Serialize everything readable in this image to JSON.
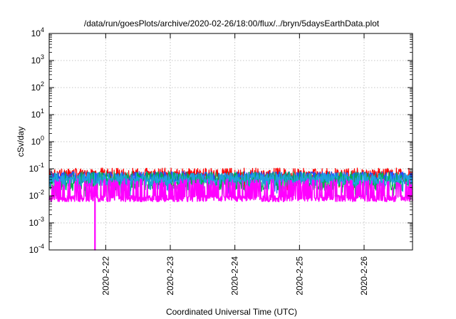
{
  "chart_data": {
    "type": "line",
    "title": "/data/run/goesPlots/archive/2020-02-26/18:00/flux/../bryn/5daysEarthData.plot",
    "xlabel": "Coordinated Universal Time (UTC)",
    "ylabel": "cSv/day",
    "y_scale": "log",
    "ylim": [
      0.0001,
      10000
    ],
    "xlim": [
      "2020-02-21T03:00",
      "2020-02-26T18:00"
    ],
    "x_ticks": [
      "2020-2-22",
      "2020-2-23",
      "2020-2-24",
      "2020-2-25",
      "2020-2-26"
    ],
    "y_ticks": [
      {
        "base": "10",
        "exp": "-4",
        "value": 0.0001
      },
      {
        "base": "10",
        "exp": "-3",
        "value": 0.001
      },
      {
        "base": "10",
        "exp": "-2",
        "value": 0.01
      },
      {
        "base": "10",
        "exp": "-1",
        "value": 0.1
      },
      {
        "base": "10",
        "exp": "0",
        "value": 1
      },
      {
        "base": "10",
        "exp": "1",
        "value": 10
      },
      {
        "base": "10",
        "exp": "2",
        "value": 100
      },
      {
        "base": "10",
        "exp": "3",
        "value": 1000
      },
      {
        "base": "10",
        "exp": "4",
        "value": 10000
      }
    ],
    "grid": true,
    "legend": "none",
    "series": [
      {
        "color": "#ff0000",
        "base": 0.06,
        "spread": 0.25,
        "dips": 0.02,
        "seed": 3
      },
      {
        "color": "#2050ff",
        "base": 0.05,
        "spread": 0.2,
        "dips": 0.03,
        "seed": 7
      },
      {
        "color": "#00b050",
        "base": 0.035,
        "spread": 0.35,
        "dips": 0.05,
        "seed": 11
      },
      {
        "color": "#20a0e0",
        "base": 0.04,
        "spread": 0.25,
        "dips": 0.04,
        "seed": 19
      },
      {
        "color": "#ff00ff",
        "base": 0.008,
        "spread": 0.12,
        "dips": 0.35,
        "dip_value": 0.03,
        "drop_at": "2020-02-21T20:00",
        "drop_value": 0.0001,
        "seed": 23
      }
    ]
  }
}
